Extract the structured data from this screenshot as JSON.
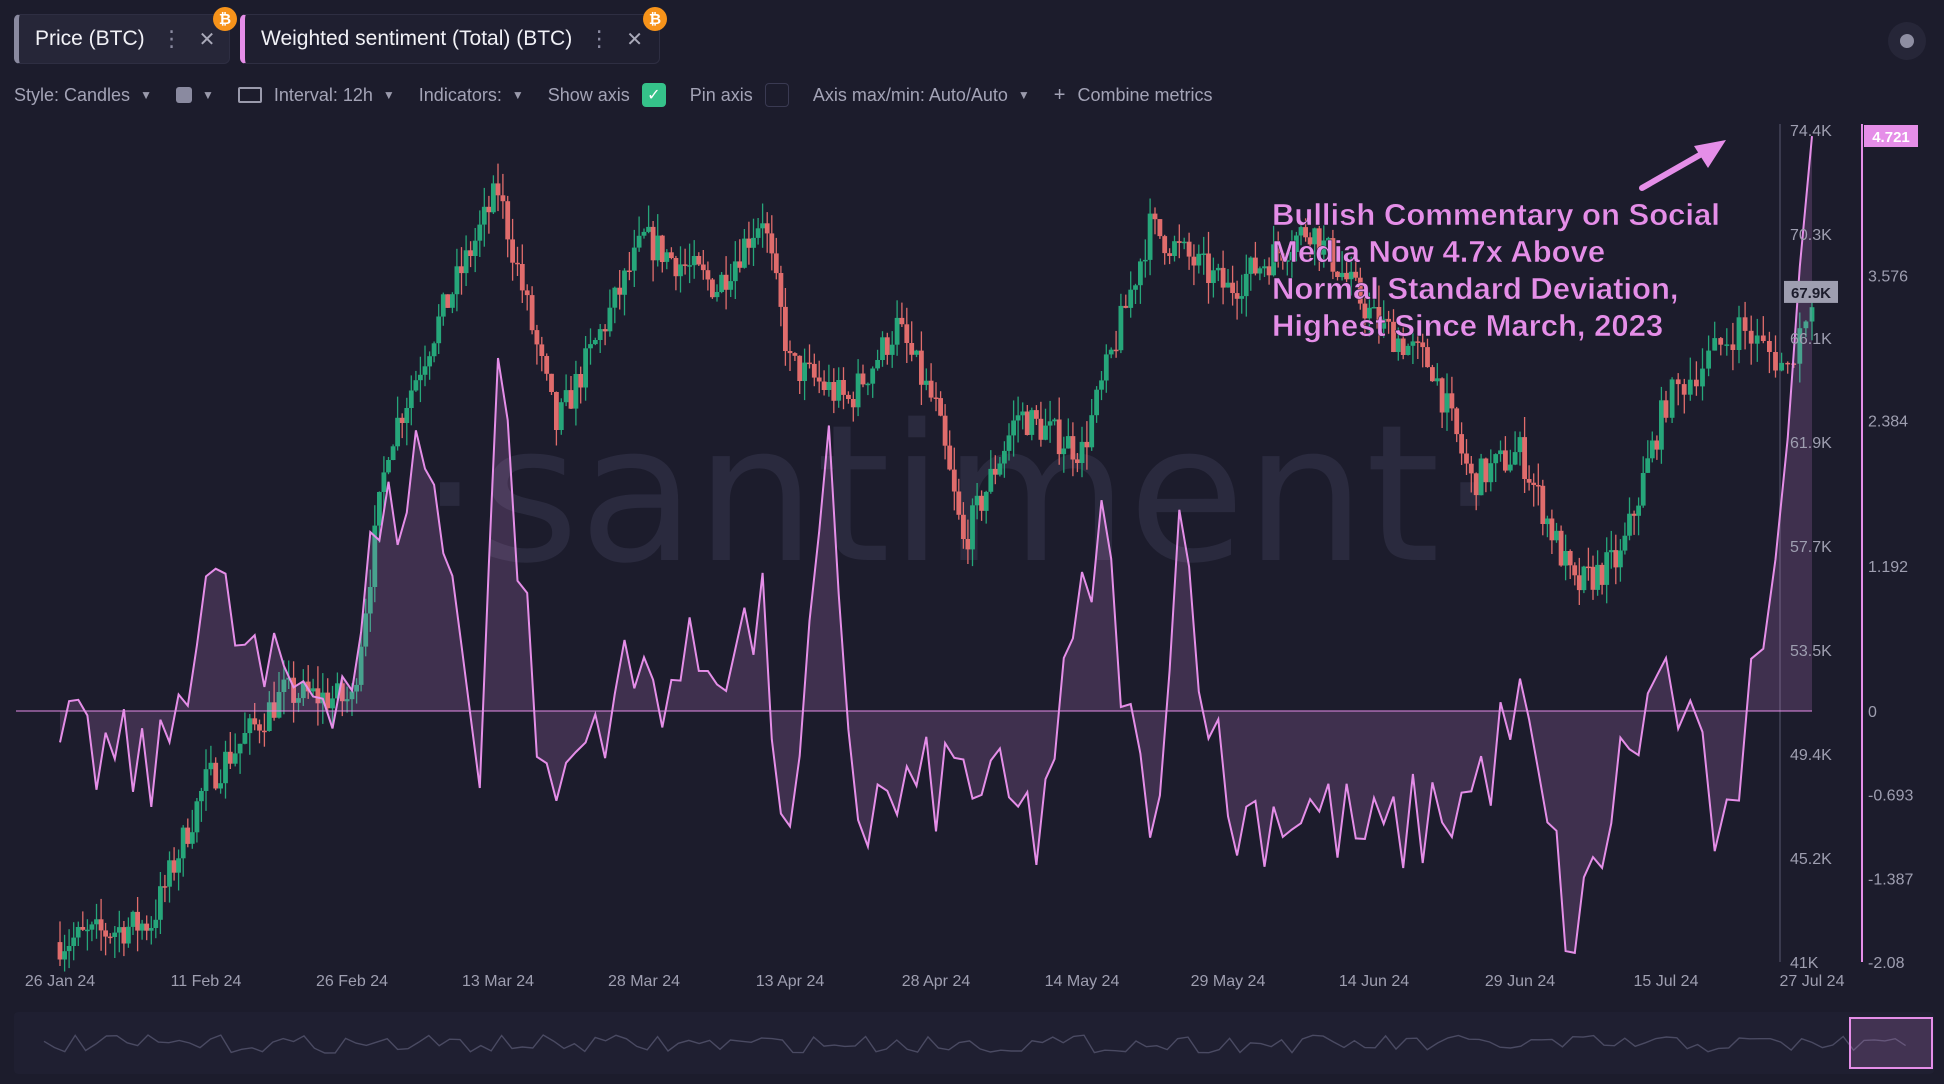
{
  "tabs": [
    {
      "label": "Price (BTC)",
      "coin": "₿"
    },
    {
      "label": "Weighted sentiment (Total) (BTC)",
      "coin": "₿"
    }
  ],
  "toolbar": {
    "style": "Style: Candles",
    "interval": "Interval: 12h",
    "indicators": "Indicators:",
    "show_axis": "Show axis",
    "show_axis_checked": true,
    "pin_axis": "Pin axis",
    "pin_axis_checked": false,
    "axis_maxmin": "Axis max/min: Auto/Auto",
    "combine": "Combine metrics"
  },
  "watermark": "·santiment·",
  "annotation": "Bullish Commentary on Social Media Now 4.7x Above Normal Standard Deviation, Highest Since March, 2023",
  "colors": {
    "up": "#26a67a",
    "down": "#e06c6c",
    "sentiment": "#e58ee8",
    "accent_green": "#35c28a"
  },
  "chart_data": {
    "type": "candlestick+line",
    "x_ticks": [
      "26 Jan 24",
      "11 Feb 24",
      "26 Feb 24",
      "13 Mar 24",
      "28 Mar 24",
      "13 Apr 24",
      "28 Apr 24",
      "14 May 24",
      "29 May 24",
      "14 Jun 24",
      "29 Jun 24",
      "15 Jul 24",
      "27 Jul 24"
    ],
    "price_axis": {
      "ticks": [
        "74.4K",
        "70.3K",
        "66.1K",
        "61.9K",
        "57.7K",
        "53.5K",
        "49.4K",
        "45.2K",
        "41K"
      ],
      "min": 41000,
      "max": 74400,
      "current": "67.9K"
    },
    "sentiment_axis": {
      "ticks": [
        "4.721",
        "3.576",
        "2.384",
        "1.192",
        "0",
        "-0.693",
        "-1.387",
        "-2.08"
      ],
      "current": "4.721"
    },
    "price_series": [
      {
        "date": "26 Jan 24",
        "value": 41800
      },
      {
        "date": "5 Feb 24",
        "value": 42600
      },
      {
        "date": "11 Feb 24",
        "value": 48200
      },
      {
        "date": "19 Feb 24",
        "value": 51800
      },
      {
        "date": "26 Feb 24",
        "value": 51500
      },
      {
        "date": "1 Mar 24",
        "value": 61800
      },
      {
        "date": "6 Mar 24",
        "value": 66300
      },
      {
        "date": "13 Mar 24",
        "value": 72000
      },
      {
        "date": "19 Mar 24",
        "value": 62500
      },
      {
        "date": "28 Mar 24",
        "value": 70000
      },
      {
        "date": "5 Apr 24",
        "value": 68100
      },
      {
        "date": "10 Apr 24",
        "value": 71000
      },
      {
        "date": "13 Apr 24",
        "value": 65000
      },
      {
        "date": "19 Apr 24",
        "value": 63500
      },
      {
        "date": "24 Apr 24",
        "value": 66500
      },
      {
        "date": "28 Apr 24",
        "value": 63200
      },
      {
        "date": "1 May 24",
        "value": 57800
      },
      {
        "date": "7 May 24",
        "value": 63000
      },
      {
        "date": "14 May 24",
        "value": 61500
      },
      {
        "date": "21 May 24",
        "value": 70500
      },
      {
        "date": "29 May 24",
        "value": 68000
      },
      {
        "date": "7 Jun 24",
        "value": 70500
      },
      {
        "date": "14 Jun 24",
        "value": 66800
      },
      {
        "date": "20 Jun 24",
        "value": 64900
      },
      {
        "date": "24 Jun 24",
        "value": 60300
      },
      {
        "date": "29 Jun 24",
        "value": 61500
      },
      {
        "date": "5 Jul 24",
        "value": 56000
      },
      {
        "date": "10 Jul 24",
        "value": 57200
      },
      {
        "date": "15 Jul 24",
        "value": 63500
      },
      {
        "date": "21 Jul 24",
        "value": 66500
      },
      {
        "date": "25 Jul 24",
        "value": 64800
      },
      {
        "date": "27 Jul 24",
        "value": 67900
      }
    ],
    "sentiment_series": [
      {
        "date": "26 Jan 24",
        "value": -0.3
      },
      {
        "date": "6 Feb 24",
        "value": -0.5
      },
      {
        "date": "11 Feb 24",
        "value": 1.1
      },
      {
        "date": "17 Feb 24",
        "value": 0.2
      },
      {
        "date": "26 Feb 24",
        "value": 0.3
      },
      {
        "date": "28 Feb 24",
        "value": 1.2
      },
      {
        "date": "5 Mar 24",
        "value": 2.2
      },
      {
        "date": "11 Mar 24",
        "value": -0.3
      },
      {
        "date": "13 Mar 24",
        "value": 2.9
      },
      {
        "date": "18 Mar 24",
        "value": -0.8
      },
      {
        "date": "25 Mar 24",
        "value": 0.2
      },
      {
        "date": "1 Apr 24",
        "value": 0.3
      },
      {
        "date": "10 Apr 24",
        "value": 0.7
      },
      {
        "date": "13 Apr 24",
        "value": -1.3
      },
      {
        "date": "17 Apr 24",
        "value": 2.0
      },
      {
        "date": "20 Apr 24",
        "value": -0.9
      },
      {
        "date": "1 May 24",
        "value": -0.5
      },
      {
        "date": "9 May 24",
        "value": -1.0
      },
      {
        "date": "16 May 24",
        "value": 1.5
      },
      {
        "date": "21 May 24",
        "value": -1.2
      },
      {
        "date": "24 May 24",
        "value": 1.6
      },
      {
        "date": "29 May 24",
        "value": -0.9
      },
      {
        "date": "7 Jun 24",
        "value": -0.8
      },
      {
        "date": "14 Jun 24",
        "value": -1.1
      },
      {
        "date": "24 Jun 24",
        "value": -0.7
      },
      {
        "date": "29 Jun 24",
        "value": 0.0
      },
      {
        "date": "2 Jul 24",
        "value": -1.0
      },
      {
        "date": "5 Jul 24",
        "value": -2.0
      },
      {
        "date": "10 Jul 24",
        "value": -0.5
      },
      {
        "date": "15 Jul 24",
        "value": 0.35
      },
      {
        "date": "19 Jul 24",
        "value": -0.9
      },
      {
        "date": "21 Jul 24",
        "value": -1.15
      },
      {
        "date": "22 Jul 24",
        "value": 0.1
      },
      {
        "date": "24 Jul 24",
        "value": 1.5
      },
      {
        "date": "27 Jul 24",
        "value": 4.72
      }
    ]
  }
}
